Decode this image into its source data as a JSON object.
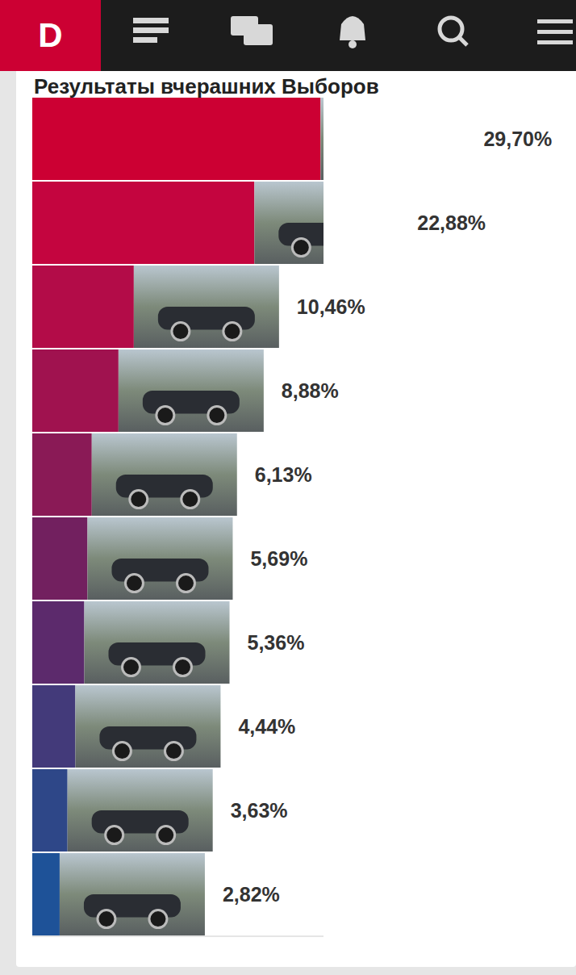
{
  "header": {
    "logo": "D"
  },
  "chart_data": {
    "type": "bar",
    "title": "Результаты вчерашних Выборов",
    "orientation": "horizontal",
    "categories": [
      null,
      null,
      null,
      null,
      null,
      null,
      null,
      null,
      null,
      null
    ],
    "values": [
      29.7,
      22.88,
      10.46,
      8.88,
      6.13,
      5.69,
      5.36,
      4.44,
      3.63,
      2.82
    ],
    "value_labels": [
      "29,70%",
      "22,88%",
      "10,46%",
      "8,88%",
      "6,13%",
      "5,69%",
      "5,36%",
      "4,44%",
      "3,63%",
      "2,82%"
    ],
    "colors": [
      "#cc0033",
      "#c4053f",
      "#b30c48",
      "#a0124f",
      "#8a1a56",
      "#72205f",
      "#5c2a6c",
      "#433a7a",
      "#2e4788",
      "#1e5298"
    ],
    "xlim": [
      0,
      30
    ],
    "tick_labels": false,
    "data_labels": true,
    "grid": false
  }
}
